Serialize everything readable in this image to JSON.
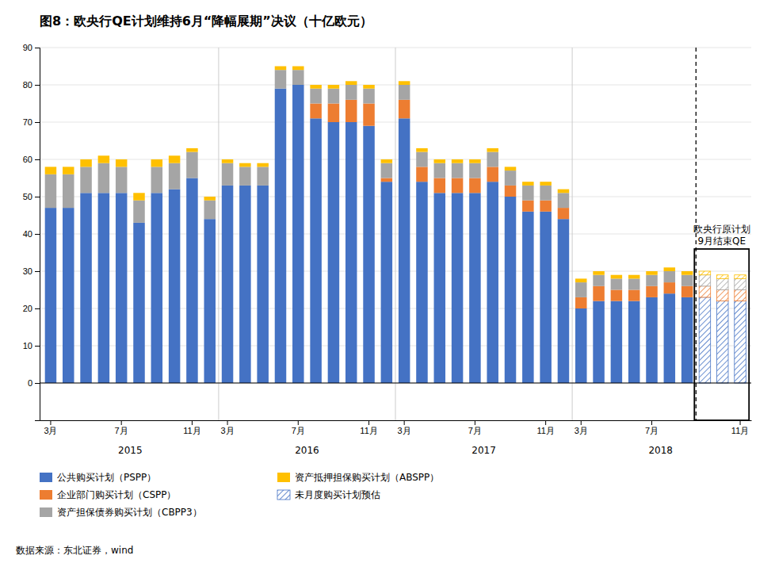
{
  "chart_data": {
    "type": "bar",
    "stacked": true,
    "grid": true,
    "legend": "bottom",
    "title": "图8：欧央行QE计划维持6月“降幅展期”决议（十亿欧元）",
    "source": "数据来源：东北证券，wind",
    "annotations": [
      "欧央行原计划",
      "9月结束QE"
    ],
    "x_group_labels": [
      "2015",
      "2016",
      "2017",
      "2018"
    ],
    "categories": [
      "3月",
      null,
      null,
      null,
      "7月",
      null,
      null,
      null,
      "11月",
      null,
      "3月",
      null,
      null,
      null,
      "7月",
      null,
      null,
      null,
      "11月",
      null,
      "3月",
      null,
      null,
      null,
      "7月",
      null,
      null,
      null,
      "11月",
      null,
      "3月",
      null,
      null,
      null,
      "7月",
      null,
      null,
      null,
      null,
      "11月"
    ],
    "ylim": [
      -10,
      90
    ],
    "yticks": [
      0,
      10,
      20,
      30,
      40,
      50,
      60,
      70,
      80,
      90
    ],
    "estimate_label": "未月度购买计划预估",
    "estimate": [
      false,
      false,
      false,
      false,
      false,
      false,
      false,
      false,
      false,
      false,
      false,
      false,
      false,
      false,
      false,
      false,
      false,
      false,
      false,
      false,
      false,
      false,
      false,
      false,
      false,
      false,
      false,
      false,
      false,
      false,
      false,
      false,
      false,
      false,
      false,
      false,
      false,
      true,
      true,
      true
    ],
    "series": [
      {
        "name": "公共购买计划（PSPP）",
        "color": "#4472C4",
        "values": [
          47,
          47,
          51,
          51,
          51,
          43,
          51,
          52,
          55,
          44,
          53,
          53,
          53,
          79,
          80,
          71,
          70,
          70,
          69,
          54,
          71,
          54,
          51,
          51,
          51,
          54,
          50,
          46,
          46,
          44,
          20,
          22,
          22,
          22,
          23,
          24,
          23,
          23,
          22,
          22
        ]
      },
      {
        "name": "企业部门购买计划（CSPP）",
        "color": "#ED7D31",
        "values": [
          0,
          0,
          0,
          0,
          0,
          0,
          0,
          0,
          0,
          0,
          0,
          0,
          0,
          0,
          0,
          4,
          5,
          6,
          6,
          1,
          5,
          4,
          4,
          4,
          4,
          4,
          3,
          3,
          3,
          3,
          3,
          4,
          3,
          3,
          3,
          3,
          3,
          3,
          3,
          3
        ]
      },
      {
        "name": "资产担保债券购买计划（CBPP3）",
        "color": "#A5A5A5",
        "values": [
          9,
          9,
          7,
          8,
          7,
          6,
          7,
          7,
          7,
          5,
          6,
          5,
          5,
          5,
          4,
          4,
          4,
          4,
          4,
          4,
          4,
          4,
          4,
          4,
          4,
          4,
          4,
          4,
          4,
          4,
          4,
          3,
          3,
          3,
          3,
          3,
          3,
          3,
          3,
          3
        ]
      },
      {
        "name": "资产抵押担保购买计划（ABSPP）",
        "color": "#FFC000",
        "values": [
          2,
          2,
          2,
          2,
          2,
          2,
          2,
          2,
          1,
          1,
          1,
          1,
          1,
          1,
          1,
          1,
          1,
          1,
          1,
          1,
          1,
          1,
          1,
          1,
          1,
          1,
          1,
          1,
          1,
          1,
          1,
          1,
          1,
          1,
          1,
          1,
          1,
          1,
          1,
          1
        ]
      }
    ]
  }
}
